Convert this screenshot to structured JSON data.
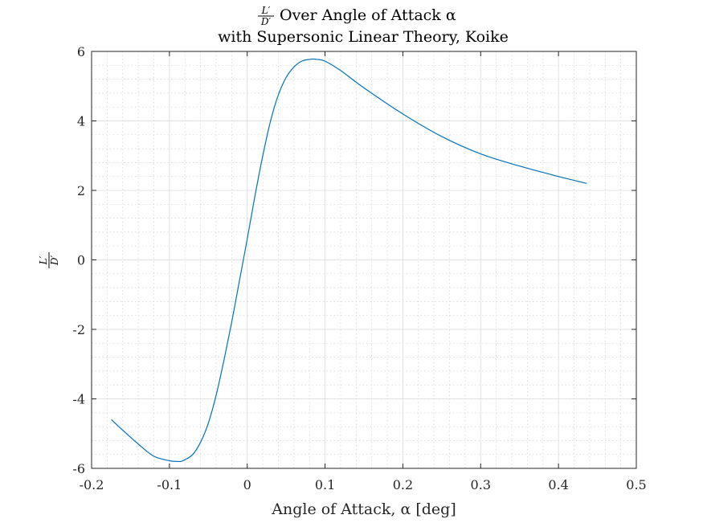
{
  "chart_data": {
    "type": "line",
    "title_line1_num": "L′",
    "title_line1_den": "D′",
    "title_line1_rest": "Over Angle of Attack α",
    "title_line2": "with Supersonic Linear Theory, Koike",
    "xlabel": "Angle of Attack, α [deg]",
    "ylabel_num": "L′",
    "ylabel_den": "D′",
    "xlim": [
      -0.2,
      0.5
    ],
    "ylim": [
      -6,
      6
    ],
    "x_ticks": [
      -0.2,
      -0.1,
      0,
      0.1,
      0.2,
      0.3,
      0.4,
      0.5
    ],
    "x_tick_labels": [
      "-0.2",
      "-0.1",
      "0",
      "0.1",
      "0.2",
      "0.3",
      "0.4",
      "0.5"
    ],
    "y_ticks": [
      -6,
      -4,
      -2,
      0,
      2,
      4,
      6
    ],
    "y_tick_labels": [
      "-6",
      "-4",
      "-2",
      "0",
      "2",
      "4",
      "6"
    ],
    "grid": "on",
    "minor_grid": "on",
    "series": [
      {
        "color": "#0072bd",
        "x": [
          -0.1745,
          -0.16,
          -0.14,
          -0.12,
          -0.1,
          -0.09,
          -0.085,
          -0.08,
          -0.07,
          -0.06,
          -0.05,
          -0.04,
          -0.03,
          -0.02,
          -0.01,
          0,
          0.01,
          0.02,
          0.03,
          0.04,
          0.05,
          0.06,
          0.07,
          0.08,
          0.085,
          0.09,
          0.1,
          0.12,
          0.15,
          0.2,
          0.25,
          0.3,
          0.35,
          0.4,
          0.4363
        ],
        "y": [
          -4.6,
          -4.9,
          -5.3,
          -5.65,
          -5.78,
          -5.8,
          -5.8,
          -5.75,
          -5.6,
          -5.25,
          -4.7,
          -3.9,
          -2.9,
          -1.8,
          -0.6,
          0.6,
          1.85,
          3.0,
          4.0,
          4.75,
          5.25,
          5.55,
          5.72,
          5.77,
          5.78,
          5.77,
          5.72,
          5.45,
          4.95,
          4.2,
          3.55,
          3.05,
          2.7,
          2.4,
          2.2
        ]
      }
    ]
  }
}
